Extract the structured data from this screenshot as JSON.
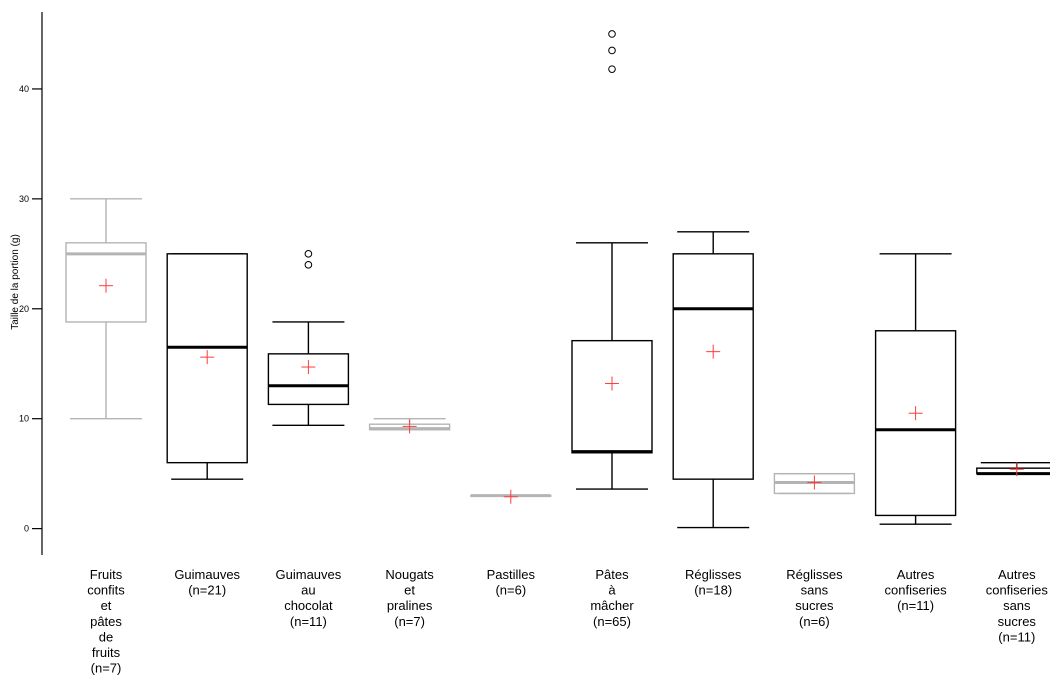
{
  "chart_data": {
    "type": "box",
    "ylabel": "Taille de la portion (g)",
    "ylim": [
      -2.4,
      47
    ],
    "yticks": [
      0,
      10,
      20,
      30,
      40
    ],
    "grid": false,
    "colors": {
      "black": "#000000",
      "grey": "#b4b4b4",
      "mean_marker": "#ff3b3b"
    },
    "categories": [
      {
        "label": [
          "Fruits",
          "confits",
          "et",
          "pâtes",
          "de",
          "fruits",
          "(n=7)"
        ],
        "color": "grey",
        "whisker_low": 10,
        "q1": 18.8,
        "median": 25,
        "q3": 26,
        "whisker_high": 30,
        "mean": 22.1,
        "outliers": []
      },
      {
        "label": [
          "Guimauves",
          "(n=21)"
        ],
        "color": "black",
        "whisker_low": 4.5,
        "q1": 6,
        "median": 16.5,
        "q3": 25,
        "whisker_high": 25,
        "mean": 15.6,
        "outliers": []
      },
      {
        "label": [
          "Guimauves",
          "au",
          "chocolat",
          "(n=11)"
        ],
        "color": "black",
        "whisker_low": 9.4,
        "q1": 11.3,
        "median": 13,
        "q3": 15.9,
        "whisker_high": 18.8,
        "mean": 14.7,
        "outliers": [
          24,
          25
        ]
      },
      {
        "label": [
          "Nougats",
          "et",
          "pralines",
          "(n=7)"
        ],
        "color": "grey",
        "whisker_low": 9,
        "q1": 9,
        "median": 9.1,
        "q3": 9.5,
        "whisker_high": 10,
        "mean": 9.3,
        "outliers": []
      },
      {
        "label": [
          "Pastilles",
          "(n=6)"
        ],
        "color": "grey",
        "whisker_low": 3,
        "q1": 3,
        "median": 3,
        "q3": 3,
        "whisker_high": 3,
        "mean": 2.9,
        "outliers": []
      },
      {
        "label": [
          "Pâtes",
          "à",
          "mâcher",
          "(n=65)"
        ],
        "color": "black",
        "whisker_low": 3.6,
        "q1": 6.9,
        "median": 7,
        "q3": 17.1,
        "whisker_high": 26,
        "mean": 13.2,
        "outliers": [
          41.8,
          43.5,
          45
        ]
      },
      {
        "label": [
          "Réglisses",
          "(n=18)"
        ],
        "color": "black",
        "whisker_low": 0.1,
        "q1": 4.5,
        "median": 20,
        "q3": 25,
        "whisker_high": 27,
        "mean": 16.1,
        "outliers": []
      },
      {
        "label": [
          "Réglisses",
          "sans",
          "sucres",
          "(n=6)"
        ],
        "color": "grey",
        "whisker_low": 3.2,
        "q1": 3.2,
        "median": 4.2,
        "q3": 5,
        "whisker_high": 5,
        "mean": 4.2,
        "outliers": []
      },
      {
        "label": [
          "Autres",
          "confiseries",
          "(n=11)"
        ],
        "color": "black",
        "whisker_low": 0.4,
        "q1": 1.2,
        "median": 9,
        "q3": 18,
        "whisker_high": 25,
        "mean": 10.5,
        "outliers": []
      },
      {
        "label": [
          "Autres",
          "confiseries",
          "sans",
          "sucres",
          "(n=11)"
        ],
        "color": "black",
        "whisker_low": 5,
        "q1": 5,
        "median": 5,
        "q3": 5.5,
        "whisker_high": 6,
        "mean": 5.4,
        "outliers": []
      }
    ]
  }
}
